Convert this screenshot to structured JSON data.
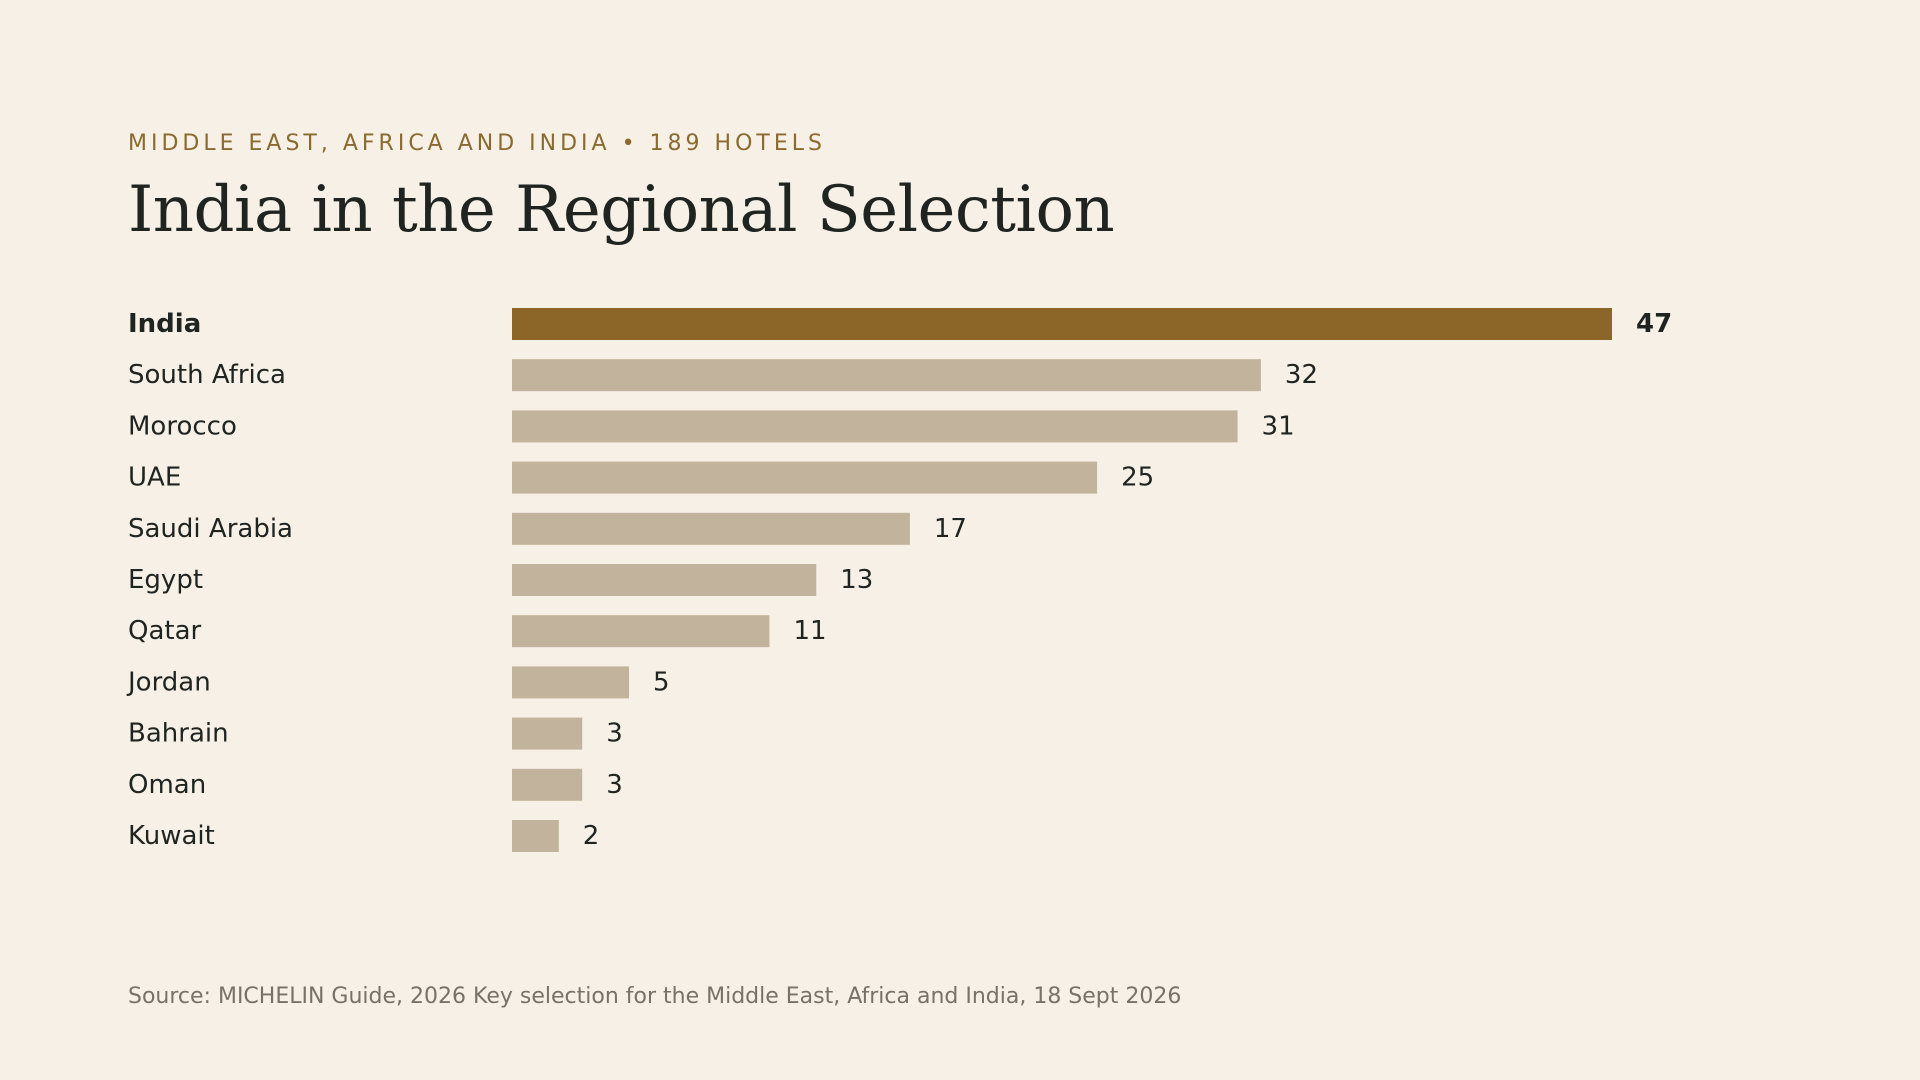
{
  "header": {
    "kicker": "MIDDLE EAST, AFRICA AND INDIA • 189 HOTELS",
    "title": "India in the Regional Selection"
  },
  "footer": {
    "source": "Source: MICHELIN Guide, 2026 Key selection for the Middle East, Africa and India, 18 Sept 2026"
  },
  "colors": {
    "highlight": "#8c6629",
    "bar": "#c2b49c",
    "label": "#1f2421",
    "kicker": "#8a6a2e",
    "source": "#77716a"
  },
  "chart_data": {
    "type": "bar",
    "orientation": "horizontal",
    "categories": [
      "India",
      "South Africa",
      "Morocco",
      "UAE",
      "Saudi Arabia",
      "Egypt",
      "Qatar",
      "Jordan",
      "Bahrain",
      "Oman",
      "Kuwait"
    ],
    "values": [
      47,
      32,
      31,
      25,
      17,
      13,
      11,
      5,
      3,
      3,
      2
    ],
    "highlight": "India",
    "title": "India in the Regional Selection",
    "xlabel": "",
    "ylabel": "",
    "xlim": [
      0,
      47
    ],
    "grid": false,
    "legend": "none"
  }
}
